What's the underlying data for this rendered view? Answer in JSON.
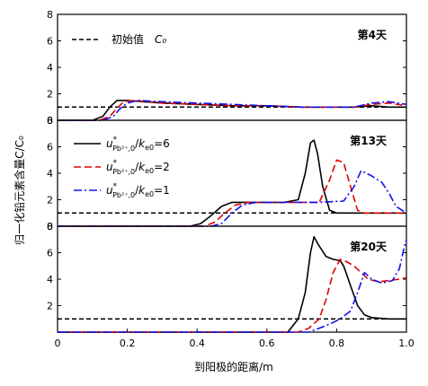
{
  "chart_data": [
    {
      "type": "line",
      "panel_label": "第4天",
      "xlim": [
        0,
        1
      ],
      "ylim": [
        0,
        8
      ],
      "yticks": [
        "0",
        "2",
        "4",
        "6",
        "8"
      ],
      "legend_position": "top-left",
      "legend": [
        {
          "name": "初始值",
          "math": "C₀",
          "style": "dashed"
        }
      ],
      "series": [
        {
          "name": "initial",
          "style": "black-dashed",
          "x": [
            0,
            1
          ],
          "y": [
            1,
            1
          ]
        },
        {
          "name": "u/k=6",
          "style": "black-solid",
          "x": [
            0,
            0.1,
            0.13,
            0.15,
            0.17,
            0.2,
            0.3,
            0.4,
            0.5,
            0.6,
            0.7,
            0.8,
            0.85,
            0.9,
            0.95,
            1.0
          ],
          "y": [
            0,
            0,
            0.3,
            1.0,
            1.5,
            1.5,
            1.3,
            1.2,
            1.1,
            1.1,
            1.0,
            1.0,
            1.0,
            1.1,
            1.0,
            1.0
          ]
        },
        {
          "name": "u/k=2",
          "style": "red-dashed",
          "x": [
            0,
            0.12,
            0.15,
            0.17,
            0.19,
            0.22,
            0.3,
            0.4,
            0.5,
            0.6,
            0.7,
            0.8,
            0.85,
            0.9,
            0.95,
            1.0
          ],
          "y": [
            0,
            0,
            0.3,
            0.9,
            1.4,
            1.5,
            1.3,
            1.2,
            1.1,
            1.1,
            1.0,
            1.0,
            1.0,
            1.2,
            1.3,
            1.1
          ]
        },
        {
          "name": "u/k=1",
          "style": "blue-dashdot",
          "x": [
            0,
            0.13,
            0.16,
            0.18,
            0.2,
            0.23,
            0.3,
            0.4,
            0.5,
            0.6,
            0.7,
            0.8,
            0.85,
            0.9,
            0.95,
            1.0
          ],
          "y": [
            0,
            0,
            0.3,
            0.9,
            1.3,
            1.5,
            1.4,
            1.3,
            1.2,
            1.1,
            1.0,
            1.0,
            1.0,
            1.3,
            1.4,
            1.2
          ]
        }
      ]
    },
    {
      "type": "line",
      "panel_label": "第13天",
      "xlim": [
        0,
        1
      ],
      "ylim": [
        0,
        8
      ],
      "yticks": [
        "0",
        "2",
        "4",
        "6",
        "8"
      ],
      "ylabel": "归一化铅元素含量C/C₀",
      "legend_position": "top-left",
      "legend": [
        {
          "label": "u*Pb²⁺,0/ke0=6",
          "style": "black-solid"
        },
        {
          "label": "u*Pb²⁺,0/ke0=2",
          "style": "red-dashed"
        },
        {
          "label": "u*Pb²⁺,0/ke0=1",
          "style": "blue-dashdot"
        }
      ],
      "series": [
        {
          "name": "initial",
          "style": "black-dashed",
          "x": [
            0,
            1
          ],
          "y": [
            1,
            1
          ]
        },
        {
          "name": "u/k=6",
          "style": "black-solid",
          "x": [
            0,
            0.38,
            0.41,
            0.44,
            0.47,
            0.5,
            0.55,
            0.6,
            0.65,
            0.69,
            0.71,
            0.725,
            0.735,
            0.745,
            0.76,
            0.78,
            0.8,
            0.85,
            0.9,
            1.0
          ],
          "y": [
            0,
            0,
            0.2,
            0.8,
            1.5,
            1.8,
            1.8,
            1.8,
            1.8,
            2.0,
            4.0,
            6.3,
            6.5,
            5.5,
            3.0,
            1.2,
            1.0,
            1.0,
            1.0,
            1.0
          ]
        },
        {
          "name": "u/k=2",
          "style": "red-dashed",
          "x": [
            0,
            0.42,
            0.45,
            0.48,
            0.51,
            0.55,
            0.6,
            0.65,
            0.7,
            0.75,
            0.78,
            0.8,
            0.82,
            0.84,
            0.86,
            0.88,
            0.9,
            1.0
          ],
          "y": [
            0,
            0,
            0.3,
            1.0,
            1.6,
            1.8,
            1.8,
            1.8,
            1.8,
            1.8,
            3.5,
            5.0,
            4.8,
            3.0,
            1.2,
            1.0,
            1.0,
            1.0
          ]
        },
        {
          "name": "u/k=1",
          "style": "blue-dashdot",
          "x": [
            0,
            0.44,
            0.47,
            0.5,
            0.53,
            0.57,
            0.65,
            0.75,
            0.82,
            0.85,
            0.87,
            0.9,
            0.93,
            0.95,
            0.97,
            1.0
          ],
          "y": [
            0,
            0,
            0.2,
            1.0,
            1.6,
            1.8,
            1.8,
            1.8,
            1.9,
            3.0,
            4.2,
            3.8,
            3.3,
            2.5,
            1.5,
            1.0
          ]
        }
      ]
    },
    {
      "type": "line",
      "panel_label": "第20天",
      "xlim": [
        0,
        1
      ],
      "ylim": [
        0,
        8
      ],
      "yticks": [
        "2",
        "4",
        "6",
        "8"
      ],
      "xticks": [
        "0",
        "0.2",
        "0.4",
        "0.6",
        "0.8",
        "1.0"
      ],
      "xlabel": "到阳极的距离/m",
      "series": [
        {
          "name": "initial",
          "style": "black-dashed",
          "x": [
            0,
            1
          ],
          "y": [
            1,
            1
          ]
        },
        {
          "name": "u/k=6",
          "style": "black-solid",
          "x": [
            0,
            0.66,
            0.69,
            0.71,
            0.725,
            0.735,
            0.75,
            0.77,
            0.79,
            0.81,
            0.82,
            0.84,
            0.86,
            0.88,
            0.9,
            0.95,
            1.0
          ],
          "y": [
            0,
            0,
            1.0,
            3.0,
            6.0,
            7.2,
            6.5,
            5.7,
            5.5,
            5.4,
            5.0,
            3.5,
            2.0,
            1.3,
            1.1,
            1.0,
            1.0
          ]
        },
        {
          "name": "u/k=2",
          "style": "red-dashed",
          "x": [
            0,
            0.69,
            0.72,
            0.75,
            0.77,
            0.79,
            0.81,
            0.83,
            0.85,
            0.87,
            0.89,
            0.92,
            0.95,
            0.98,
            1.0
          ],
          "y": [
            0,
            0,
            0.3,
            1.0,
            2.5,
            4.5,
            5.5,
            5.3,
            5.0,
            4.5,
            4.0,
            3.8,
            3.9,
            4.0,
            4.1
          ]
        },
        {
          "name": "u/k=1",
          "style": "blue-dashdot",
          "x": [
            0,
            0.72,
            0.75,
            0.78,
            0.81,
            0.84,
            0.86,
            0.88,
            0.9,
            0.93,
            0.96,
            0.98,
            0.99,
            1.0
          ],
          "y": [
            0,
            0,
            0.3,
            0.6,
            1.0,
            1.6,
            3.0,
            4.5,
            4.0,
            3.7,
            3.9,
            4.8,
            6.0,
            7.0
          ]
        }
      ]
    }
  ]
}
